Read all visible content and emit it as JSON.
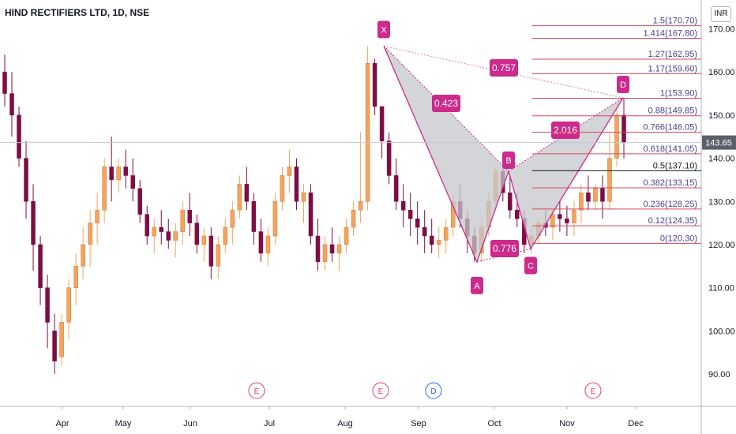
{
  "header": {
    "symbol_title": "HIND RECTIFIERS LTD, 1D, NSE",
    "currency": "INR"
  },
  "price_scale": {
    "ticks": [
      "170.00",
      "160.00",
      "150.00",
      "140.00",
      "130.00",
      "120.00",
      "110.00",
      "100.00",
      "90.00"
    ],
    "current_price": "143.65"
  },
  "time_scale": {
    "labels": [
      "Apr",
      "May",
      "Jun",
      "Jul",
      "Aug",
      "Sep",
      "Oct",
      "Nov",
      "Dec"
    ]
  },
  "colors": {
    "up": "#f7a35c",
    "down": "#7d0d45",
    "pattern": "#cc2a8d",
    "fib_line": "#d44a5a",
    "fib_text": "#4a3c8c",
    "fill": "#c6c7cb"
  },
  "chart_data": {
    "type": "candlestick",
    "title": "HIND RECTIFIERS LTD, 1D, NSE",
    "ylim": [
      84,
      174
    ],
    "yticks": [
      90,
      100,
      110,
      120,
      130,
      140,
      150,
      160,
      170
    ],
    "x_months": [
      "Apr",
      "May",
      "Jun",
      "Jul",
      "Aug",
      "Sep",
      "Oct",
      "Nov",
      "Dec"
    ],
    "last_price": 143.65,
    "candles": [
      [
        160,
        164,
        152,
        155
      ],
      [
        155,
        160,
        145,
        150
      ],
      [
        150,
        152,
        138,
        140
      ],
      [
        140,
        144,
        126,
        130
      ],
      [
        130,
        134,
        114,
        120
      ],
      [
        120,
        122,
        106,
        110
      ],
      [
        110,
        113,
        96,
        102
      ],
      [
        100,
        104,
        90,
        93
      ],
      [
        94,
        104,
        92,
        102
      ],
      [
        102,
        112,
        98,
        110
      ],
      [
        110,
        118,
        106,
        115
      ],
      [
        115,
        124,
        112,
        120
      ],
      [
        120,
        128,
        115,
        125
      ],
      [
        125,
        132,
        120,
        128
      ],
      [
        128,
        140,
        125,
        138
      ],
      [
        138,
        145,
        130,
        135
      ],
      [
        135,
        140,
        132,
        138
      ],
      [
        138,
        142,
        133,
        136
      ],
      [
        136,
        140,
        130,
        133
      ],
      [
        133,
        135,
        125,
        127
      ],
      [
        127,
        129,
        120,
        122
      ],
      [
        122,
        126,
        118,
        124
      ],
      [
        124,
        128,
        120,
        123
      ],
      [
        123,
        126,
        119,
        121
      ],
      [
        121,
        125,
        117,
        123
      ],
      [
        123,
        130,
        120,
        128
      ],
      [
        128,
        132,
        122,
        125
      ],
      [
        125,
        127,
        118,
        120
      ],
      [
        120,
        124,
        116,
        122
      ],
      [
        122,
        124,
        112,
        115
      ],
      [
        115,
        122,
        112,
        120
      ],
      [
        120,
        126,
        118,
        124
      ],
      [
        124,
        130,
        120,
        128
      ],
      [
        128,
        136,
        126,
        134
      ],
      [
        134,
        138,
        128,
        130
      ],
      [
        130,
        132,
        120,
        123
      ],
      [
        123,
        126,
        116,
        118
      ],
      [
        118,
        124,
        115,
        122
      ],
      [
        122,
        132,
        120,
        130
      ],
      [
        130,
        138,
        128,
        136
      ],
      [
        136,
        142,
        132,
        138
      ],
      [
        138,
        140,
        128,
        130
      ],
      [
        130,
        134,
        125,
        132
      ],
      [
        132,
        134,
        120,
        122
      ],
      [
        122,
        126,
        114,
        116
      ],
      [
        116,
        122,
        114,
        120
      ],
      [
        120,
        124,
        116,
        118
      ],
      [
        118,
        122,
        114,
        120
      ],
      [
        120,
        126,
        118,
        124
      ],
      [
        124,
        130,
        122,
        128
      ],
      [
        128,
        146,
        125,
        130
      ],
      [
        130,
        166,
        128,
        162
      ],
      [
        162,
        163,
        150,
        152
      ],
      [
        152,
        152,
        140,
        144
      ],
      [
        144,
        146,
        134,
        136
      ],
      [
        136,
        140,
        128,
        130
      ],
      [
        130,
        134,
        124,
        128
      ],
      [
        128,
        132,
        122,
        126
      ],
      [
        126,
        130,
        120,
        124
      ],
      [
        124,
        128,
        118,
        122
      ],
      [
        122,
        126,
        118,
        120
      ],
      [
        120,
        124,
        117,
        121
      ],
      [
        121,
        126,
        118,
        124
      ],
      [
        124,
        132,
        122,
        130
      ],
      [
        130,
        134,
        124,
        126
      ],
      [
        126,
        128,
        118,
        122
      ],
      [
        122,
        124,
        116,
        118
      ],
      [
        118,
        126,
        116,
        124
      ],
      [
        124,
        132,
        122,
        130
      ],
      [
        130,
        138,
        128,
        137
      ],
      [
        137,
        140,
        130,
        132
      ],
      [
        132,
        136,
        126,
        128
      ],
      [
        128,
        132,
        124,
        126
      ],
      [
        126,
        128,
        118,
        120
      ],
      [
        120,
        124,
        118,
        122
      ],
      [
        122,
        126,
        120,
        125
      ],
      [
        125,
        128,
        122,
        124
      ],
      [
        124,
        128,
        121,
        127
      ],
      [
        127,
        130,
        123,
        126
      ],
      [
        126,
        129,
        122,
        125
      ],
      [
        125,
        130,
        122,
        128
      ],
      [
        128,
        134,
        125,
        132
      ],
      [
        132,
        136,
        128,
        130
      ],
      [
        130,
        134,
        128,
        133
      ],
      [
        133,
        136,
        126,
        130
      ],
      [
        130,
        146,
        128,
        140
      ],
      [
        140,
        152,
        138,
        150
      ],
      [
        150,
        154,
        140,
        143.65
      ]
    ],
    "harmonic_pattern": {
      "points": [
        {
          "label": "X",
          "price": 166
        },
        {
          "label": "A",
          "price": 116
        },
        {
          "label": "B",
          "price": 137
        },
        {
          "label": "C",
          "price": 119
        },
        {
          "label": "D",
          "price": 154
        }
      ],
      "ratios": [
        "0.423",
        "0.776",
        "2.016",
        "0.757"
      ]
    },
    "fib_levels": [
      {
        "ratio": "1.5",
        "price": "170.70",
        "label": "1.5(170.70)"
      },
      {
        "ratio": "1.414",
        "price": "167.80",
        "label": "1.414(167.80)"
      },
      {
        "ratio": "1.27",
        "price": "162.95",
        "label": "1.27(162.95)"
      },
      {
        "ratio": "1.17",
        "price": "159.60",
        "label": "1.17(159.60)"
      },
      {
        "ratio": "1",
        "price": "153.90",
        "label": "1(153.90)"
      },
      {
        "ratio": "0.88",
        "price": "149.85",
        "label": "0.88(149.85)"
      },
      {
        "ratio": "0.766",
        "price": "146.05",
        "label": "0.766(146.05)"
      },
      {
        "ratio": "0.618",
        "price": "141.05",
        "label": "0.618(141.05)"
      },
      {
        "ratio": "0.5",
        "price": "137.10",
        "label": "0.5(137.10)"
      },
      {
        "ratio": "0.382",
        "price": "133.15",
        "label": "0.382(133.15)"
      },
      {
        "ratio": "0.236",
        "price": "128.25",
        "label": "0.236(128.25)"
      },
      {
        "ratio": "0.12",
        "price": "124.35",
        "label": "0.12(124.35)"
      },
      {
        "ratio": "0",
        "price": "120.30",
        "label": "0(120.30)"
      }
    ],
    "events": [
      {
        "label": "E",
        "month": "Jul"
      },
      {
        "label": "E",
        "month": "Aug"
      },
      {
        "label": "D",
        "month": "Sep"
      },
      {
        "label": "E",
        "month": "Nov"
      }
    ]
  }
}
